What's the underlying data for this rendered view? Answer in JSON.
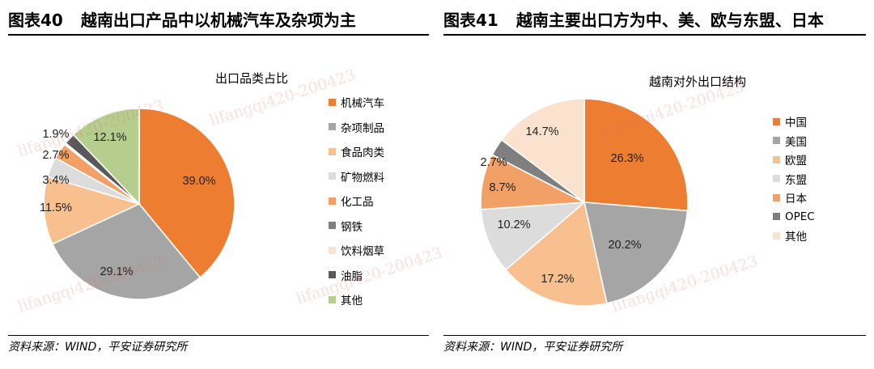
{
  "watermark": "lifangqi420-200423",
  "colors": {
    "orange": "#ED7D31",
    "gray": "#A5A5A5",
    "light_orange": "#F8BF8F",
    "light_gray": "#DCDCDC",
    "mid_orange": "#F2A065",
    "dark_gray": "#7F7F7F",
    "peach": "#FBE2CF",
    "charcoal": "#595959",
    "green": "#B5CE8E"
  },
  "left": {
    "fig_number": "图表40",
    "fig_title": "越南出口产品中以机械汽车及杂项为主",
    "source": "资料来源：WIND，平安证券研究所",
    "legend": [
      "机械汽车",
      "杂项制品",
      "食品肉类",
      "矿物燃料",
      "化工品",
      "钢铁",
      "饮料烟草",
      "油脂",
      "其他"
    ],
    "chart_data": {
      "type": "pie",
      "title": "出口品类占比",
      "slices": [
        {
          "name": "机械汽车",
          "value": 39.0,
          "label": "39.0%",
          "color": "#ED7D31"
        },
        {
          "name": "杂项制品",
          "value": 29.1,
          "label": "29.1%",
          "color": "#A5A5A5"
        },
        {
          "name": "食品肉类",
          "value": 11.5,
          "label": "11.5%",
          "color": "#F8BF8F"
        },
        {
          "name": "矿物燃料",
          "value": 3.4,
          "label": "3.4%",
          "color": "#DCDCDC"
        },
        {
          "name": "化工品",
          "value": 2.7,
          "label": "2.7%",
          "color": "#F2A065"
        },
        {
          "name": "钢铁",
          "value": 0.0,
          "label": "",
          "color": "#7F7F7F"
        },
        {
          "name": "饮料烟草",
          "value": 0.3,
          "label": "",
          "color": "#FBE2CF"
        },
        {
          "name": "油脂",
          "value": 1.9,
          "label": "1.9%",
          "color": "#595959"
        },
        {
          "name": "其他",
          "value": 12.1,
          "label": "12.1%",
          "color": "#B5CE8E"
        }
      ]
    }
  },
  "right": {
    "fig_number": "图表41",
    "fig_title": "越南主要出口方为中、美、欧与东盟、日本",
    "source": "资料来源：WIND，平安证券研究所",
    "legend": [
      "中国",
      "美国",
      "欧盟",
      "东盟",
      "日本",
      "OPEC",
      "其他"
    ],
    "chart_data": {
      "type": "pie",
      "title": "越南对外出口结构",
      "slices": [
        {
          "name": "中国",
          "value": 26.3,
          "label": "26.3%",
          "color": "#ED7D31"
        },
        {
          "name": "美国",
          "value": 20.2,
          "label": "20.2%",
          "color": "#A5A5A5"
        },
        {
          "name": "欧盟",
          "value": 17.2,
          "label": "17.2%",
          "color": "#F8BF8F"
        },
        {
          "name": "东盟",
          "value": 10.2,
          "label": "10.2%",
          "color": "#DCDCDC"
        },
        {
          "name": "日本",
          "value": 8.7,
          "label": "8.7%",
          "color": "#F2A065"
        },
        {
          "name": "OPEC",
          "value": 2.7,
          "label": "2.7%",
          "color": "#7F7F7F"
        },
        {
          "name": "其他",
          "value": 14.7,
          "label": "14.7%",
          "color": "#FBE2CF"
        }
      ]
    }
  }
}
